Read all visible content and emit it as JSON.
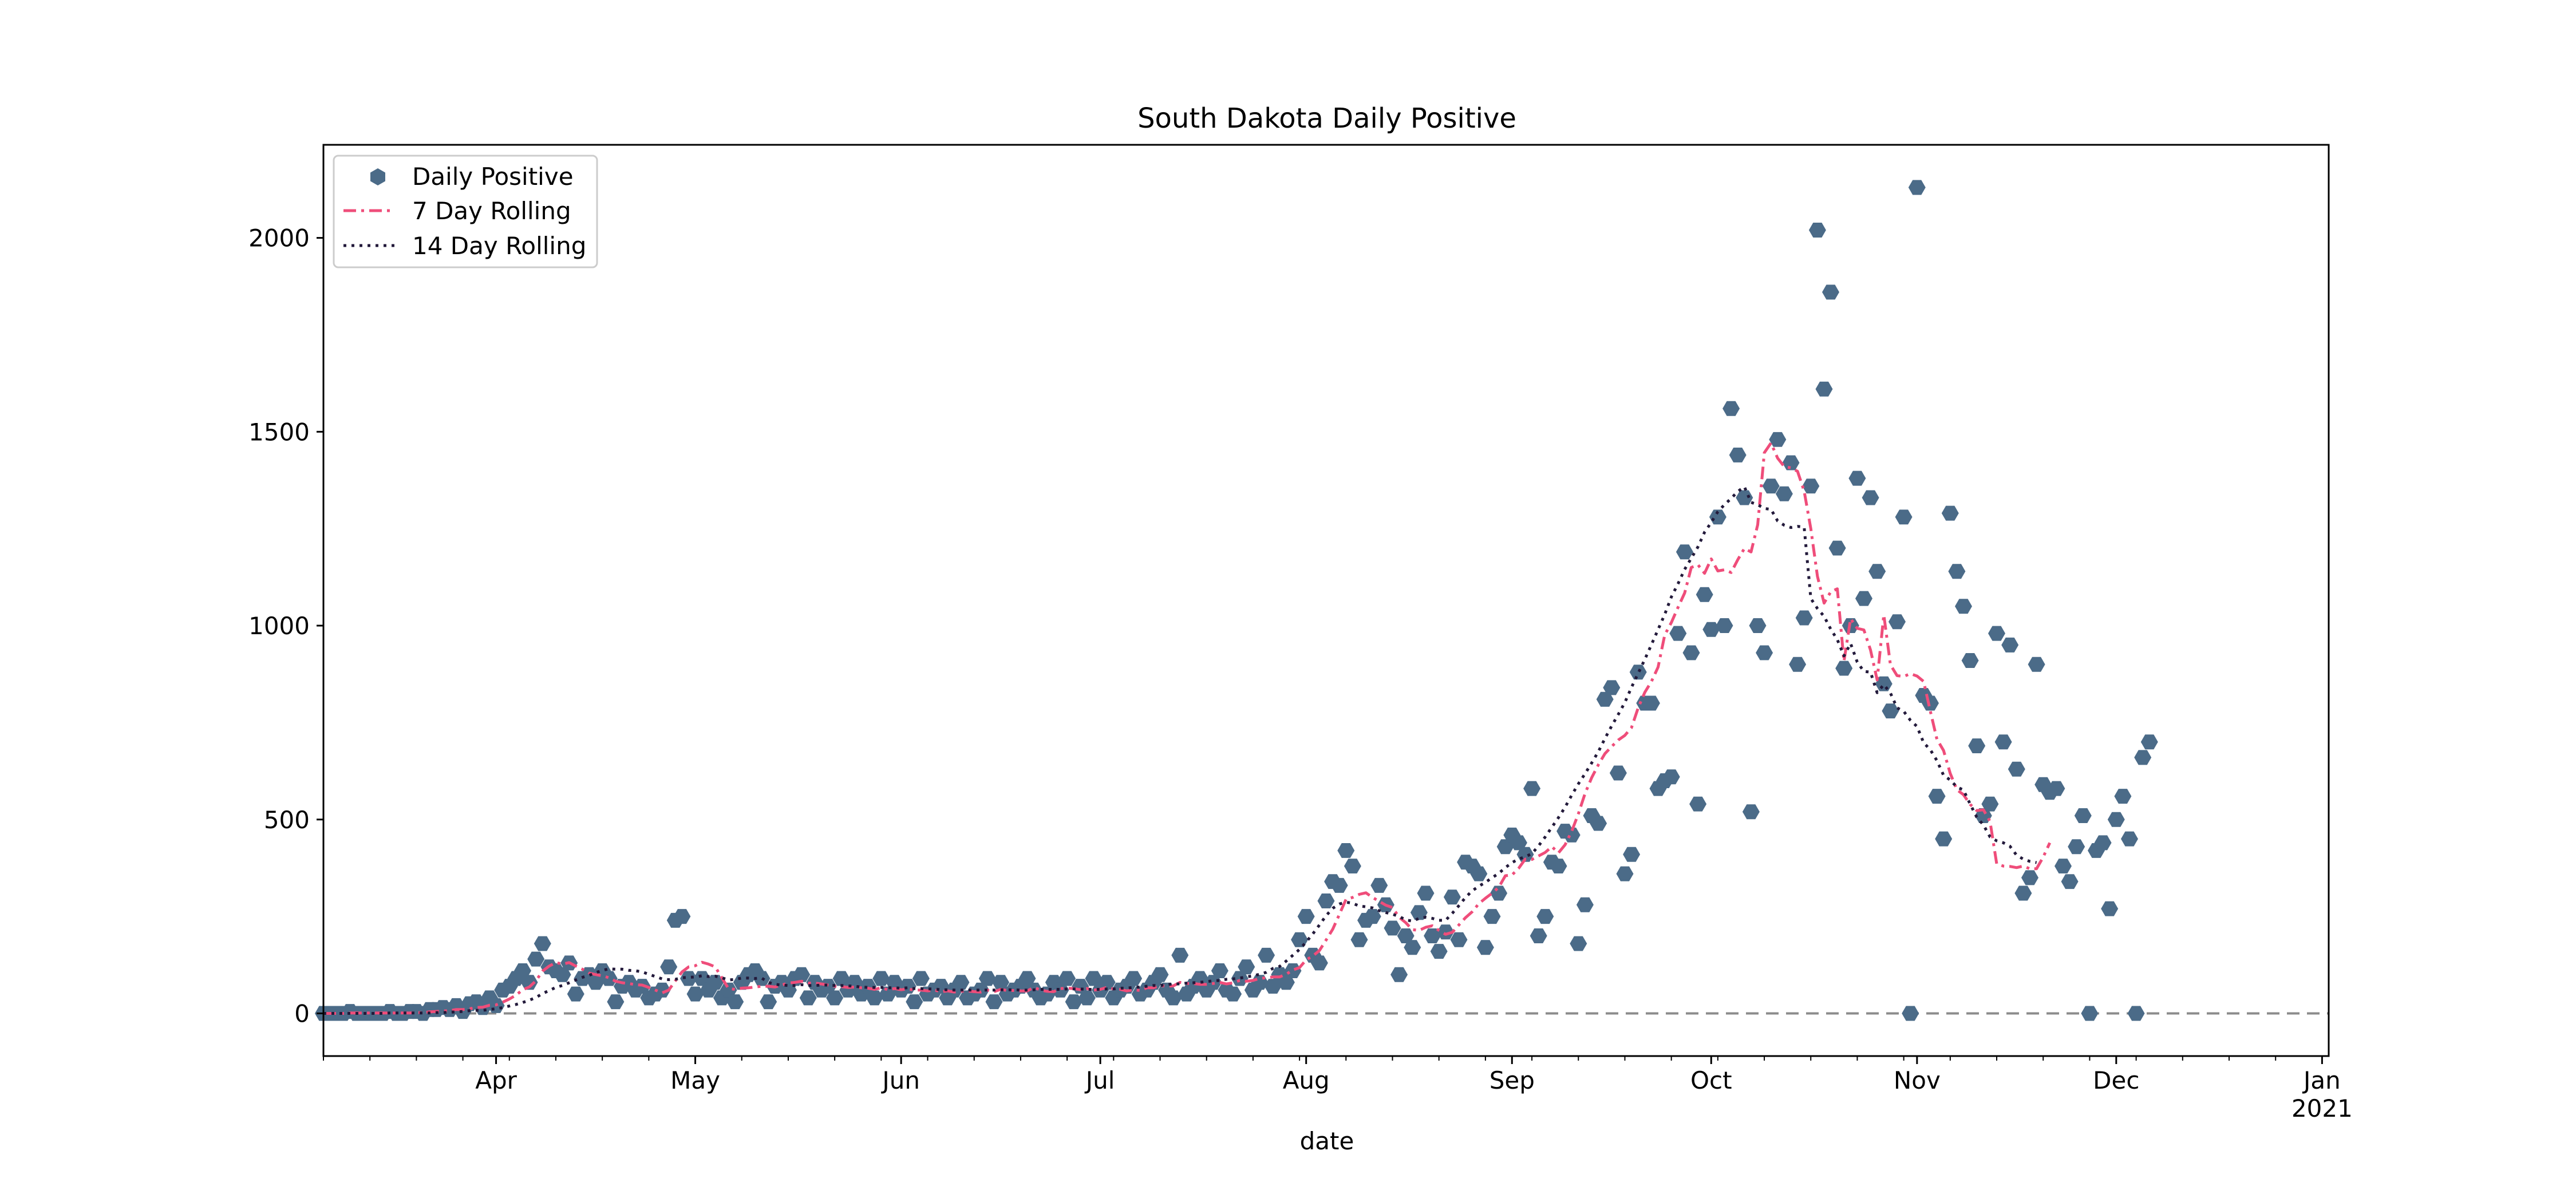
{
  "chart_data": {
    "type": "scatter",
    "title": "South Dakota Daily Positive",
    "xlabel": "date",
    "ylabel": "",
    "x_start": "2020-03-06",
    "x_end": "2021-01-02",
    "ylim": [
      -110,
      2240
    ],
    "yticks": [
      0,
      500,
      1000,
      1500,
      2000
    ],
    "ytick_labels": [
      "0",
      "500",
      "1000",
      "1500",
      "2000"
    ],
    "xtick_labels": [
      {
        "label": "Apr",
        "date": "2020-04-01"
      },
      {
        "label": "May",
        "date": "2020-05-01"
      },
      {
        "label": "Jun",
        "date": "2020-06-01"
      },
      {
        "label": "Jul",
        "date": "2020-07-01"
      },
      {
        "label": "Aug",
        "date": "2020-08-01"
      },
      {
        "label": "Sep",
        "date": "2020-09-01"
      },
      {
        "label": "Oct",
        "date": "2020-10-01"
      },
      {
        "label": "Nov",
        "date": "2020-11-01"
      },
      {
        "label": "Dec",
        "date": "2020-12-01"
      },
      {
        "label": "Jan",
        "sublabel": "2021",
        "date": "2021-01-01"
      }
    ],
    "zero_line": true,
    "grid": false,
    "legend_position": "top-left",
    "series": [
      {
        "name": "Daily Positive",
        "kind": "points",
        "color": "#4b6b88",
        "values": [
          0,
          0,
          0,
          0,
          5,
          0,
          0,
          0,
          0,
          0,
          5,
          0,
          0,
          5,
          5,
          0,
          10,
          10,
          15,
          10,
          20,
          5,
          25,
          30,
          15,
          40,
          20,
          60,
          70,
          90,
          110,
          80,
          140,
          180,
          120,
          110,
          100,
          130,
          50,
          90,
          100,
          80,
          110,
          90,
          30,
          70,
          80,
          60,
          70,
          40,
          50,
          60,
          120,
          240,
          250,
          90,
          50,
          90,
          60,
          80,
          40,
          60,
          30,
          80,
          100,
          110,
          90,
          30,
          70,
          80,
          60,
          90,
          100,
          40,
          80,
          60,
          70,
          40,
          90,
          60,
          80,
          50,
          70,
          40,
          90,
          50,
          80,
          60,
          70,
          30,
          90,
          50,
          60,
          70,
          40,
          60,
          80,
          40,
          50,
          60,
          90,
          30,
          80,
          50,
          60,
          70,
          90,
          60,
          40,
          50,
          80,
          60,
          90,
          30,
          70,
          40,
          90,
          60,
          80,
          40,
          60,
          70,
          90,
          50,
          60,
          80,
          100,
          60,
          40,
          150,
          50,
          70,
          90,
          60,
          80,
          110,
          60,
          50,
          90,
          120,
          60,
          80,
          150,
          70,
          100,
          80,
          110,
          190,
          250,
          150,
          130,
          290,
          340,
          330,
          420,
          380,
          190,
          240,
          250,
          330,
          280,
          220,
          100,
          200,
          170,
          260,
          310,
          200,
          160,
          210,
          300,
          190,
          390,
          380,
          360,
          170,
          250,
          310,
          430,
          460,
          440,
          410,
          580,
          200,
          250,
          390,
          380,
          470,
          460,
          180,
          280,
          510,
          490,
          810,
          840,
          620,
          360,
          410,
          880,
          800,
          800,
          580,
          600,
          610,
          980,
          1190,
          930,
          540,
          1080,
          990,
          1280,
          1000,
          1560,
          1440,
          1330,
          520,
          1000,
          930,
          1360,
          1480,
          1340,
          1420,
          900,
          1020,
          1360,
          2020,
          1610,
          1860,
          1200,
          890,
          1000,
          1380,
          1070,
          1330,
          1140,
          850,
          780,
          1010,
          1280,
          0,
          2130,
          820,
          800,
          560,
          450,
          1290,
          1140,
          1050,
          910,
          690,
          510,
          540,
          980,
          700,
          950,
          630,
          310,
          350,
          900,
          590,
          570,
          580,
          380,
          340,
          430,
          510,
          0,
          420,
          440,
          270,
          500,
          560,
          450,
          0,
          660,
          700
        ]
      },
      {
        "name": "7 Day Rolling",
        "kind": "dashdot",
        "color": "#ef4d7a",
        "values": [
          0,
          0,
          0,
          0,
          1,
          1,
          1,
          1,
          1,
          1,
          1,
          1,
          1,
          1,
          2,
          2,
          4,
          5,
          6,
          7,
          10,
          10,
          12,
          15,
          16,
          21,
          22,
          29,
          37,
          47,
          61,
          68,
          84,
          109,
          122,
          131,
          127,
          131,
          122,
          114,
          104,
          100,
          97,
          92,
          83,
          79,
          77,
          74,
          73,
          67,
          60,
          53,
          60,
          84,
          107,
          120,
          123,
          132,
          127,
          120,
          92,
          64,
          62,
          65,
          66,
          68,
          70,
          70,
          68,
          73,
          78,
          80,
          83,
          78,
          78,
          76,
          73,
          70,
          69,
          67,
          68,
          66,
          65,
          62,
          66,
          61,
          64,
          61,
          63,
          60,
          60,
          58,
          60,
          56,
          58,
          55,
          57,
          58,
          56,
          55,
          60,
          56,
          62,
          59,
          59,
          58,
          58,
          67,
          60,
          57,
          56,
          64,
          65,
          64,
          61,
          64,
          60,
          62,
          67,
          63,
          62,
          58,
          61,
          59,
          66,
          66,
          72,
          70,
          71,
          80,
          77,
          77,
          75,
          75,
          77,
          80,
          76,
          79,
          85,
          83,
          85,
          90,
          92,
          94,
          94,
          101,
          112,
          118,
          138,
          148,
          162,
          189,
          217,
          255,
          294,
          299,
          307,
          311,
          299,
          289,
          279,
          273,
          248,
          234,
          216,
          214,
          222,
          226,
          214,
          204,
          209,
          228,
          247,
          262,
          283,
          297,
          310,
          325,
          355,
          357,
          374,
          398,
          397,
          406,
          415,
          430,
          414,
          435,
          470,
          515,
          567,
          608,
          641,
          670,
          688,
          705,
          717,
          737,
          788,
          828,
          856,
          893,
          976,
          1008,
          1047,
          1084,
          1150,
          1157,
          1135,
          1172,
          1141,
          1144,
          1137,
          1170,
          1199,
          1190,
          1260,
          1446,
          1471,
          1432,
          1410,
          1407,
          1398,
          1347,
          1250,
          1127,
          1058,
          1087,
          1095,
          908,
          1018,
          993,
          989,
          937,
          860,
          1028,
          899,
          871,
          869,
          876,
          870,
          856,
          780,
          707,
          678,
          619,
          577,
          564,
          539,
          523,
          525,
          495,
          386,
          380,
          379,
          376,
          380,
          373,
          373,
          403,
          440
        ]
      },
      {
        "name": "14 Day Rolling",
        "kind": "dotted",
        "color": "#231a3b",
        "values": [
          0,
          0,
          0,
          0,
          0,
          0,
          0,
          0,
          0,
          0,
          1,
          1,
          1,
          1,
          1,
          1,
          1,
          2,
          2,
          3,
          4,
          5,
          7,
          8,
          8,
          10,
          12,
          15,
          19,
          23,
          28,
          34,
          41,
          51,
          59,
          67,
          72,
          79,
          86,
          93,
          98,
          105,
          111,
          115,
          114,
          114,
          111,
          110,
          107,
          101,
          95,
          89,
          87,
          88,
          92,
          93,
          94,
          97,
          95,
          96,
          92,
          86,
          88,
          91,
          91,
          90,
          91,
          80,
          75,
          73,
          72,
          72,
          74,
          72,
          72,
          73,
          73,
          72,
          72,
          71,
          70,
          68,
          67,
          67,
          67,
          66,
          66,
          65,
          66,
          64,
          64,
          63,
          63,
          61,
          61,
          60,
          60,
          60,
          60,
          60,
          60,
          60,
          61,
          61,
          61,
          60,
          60,
          61,
          62,
          62,
          62,
          62,
          63,
          63,
          63,
          62,
          62,
          62,
          63,
          63,
          65,
          65,
          67,
          68,
          70,
          72,
          72,
          74,
          76,
          76,
          78,
          79,
          80,
          82,
          84,
          85,
          88,
          89,
          91,
          94,
          97,
          101,
          106,
          116,
          121,
          135,
          150,
          165,
          184,
          205,
          228,
          252,
          271,
          282,
          287,
          284,
          277,
          275,
          272,
          265,
          260,
          256,
          250,
          241,
          238,
          245,
          248,
          245,
          240,
          240,
          258,
          278,
          299,
          316,
          328,
          338,
          350,
          361,
          376,
          389,
          398,
          404,
          412,
          432,
          455,
          480,
          505,
          532,
          563,
          592,
          618,
          646,
          675,
          709,
          741,
          771,
          802,
          841,
          877,
          913,
          951,
          990,
          1029,
          1074,
          1108,
          1145,
          1174,
          1203,
          1241,
          1266,
          1294,
          1312,
          1328,
          1346,
          1358,
          1318,
          1312,
          1302,
          1300,
          1270,
          1259,
          1253,
          1256,
          1254,
          1070,
          1044,
          1024,
          991,
          964,
          922,
          954,
          906,
          882,
          880,
          827,
          848,
          826,
          788,
          779,
          756,
          740,
          698,
          680,
          652,
          614,
          602,
          584,
          576,
          540,
          506,
          486,
          455,
          445,
          440,
          431,
          408,
          398,
          392,
          389
        ]
      }
    ]
  }
}
